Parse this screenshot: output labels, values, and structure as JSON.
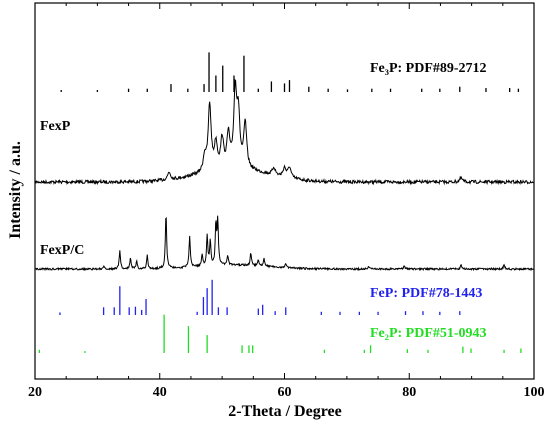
{
  "chart_data": {
    "type": "line",
    "xlabel": "2-Theta / Degree",
    "ylabel": "Intensity / a.u.",
    "xlim": [
      20,
      100
    ],
    "x_ticks": [
      "20",
      "40",
      "60",
      "80",
      "100"
    ],
    "grid": false,
    "series": [
      {
        "name": "FexP",
        "peaks": [
          [
            41.5,
            0.1
          ],
          [
            47.2,
            0.2
          ],
          [
            48.0,
            0.85
          ],
          [
            49.0,
            0.33
          ],
          [
            50.0,
            0.38
          ],
          [
            51.0,
            0.42
          ],
          [
            52.1,
            0.95
          ],
          [
            52.6,
            0.65
          ],
          [
            53.7,
            0.58
          ],
          [
            58.3,
            0.1
          ],
          [
            60.0,
            0.12
          ],
          [
            60.8,
            0.14
          ],
          [
            88.3,
            0.05
          ]
        ]
      },
      {
        "name": "FexP/C",
        "peaks": [
          [
            31.0,
            0.04
          ],
          [
            33.6,
            0.3
          ],
          [
            35.3,
            0.18
          ],
          [
            36.3,
            0.12
          ],
          [
            38.0,
            0.22
          ],
          [
            41.0,
            0.9
          ],
          [
            44.8,
            0.5
          ],
          [
            46.8,
            0.18
          ],
          [
            47.6,
            0.5
          ],
          [
            48.1,
            0.4
          ],
          [
            49.0,
            0.65
          ],
          [
            49.3,
            0.7
          ],
          [
            50.9,
            0.15
          ],
          [
            54.6,
            0.2
          ],
          [
            55.8,
            0.1
          ],
          [
            56.7,
            0.12
          ],
          [
            60.2,
            0.06
          ],
          [
            73.5,
            0.04
          ],
          [
            79.2,
            0.06
          ],
          [
            88.3,
            0.06
          ],
          [
            95.2,
            0.08
          ]
        ]
      }
    ],
    "references": [
      {
        "label": "Fe₃P: PDF#89-2712",
        "color": "#000000",
        "sticks": [
          [
            41.8,
            0.12
          ],
          [
            47.1,
            0.12
          ],
          [
            47.9,
            0.6
          ],
          [
            49.0,
            0.25
          ],
          [
            50.1,
            0.4
          ],
          [
            51.9,
            0.25
          ],
          [
            53.5,
            0.55
          ],
          [
            57.9,
            0.16
          ],
          [
            60.0,
            0.13
          ],
          [
            60.8,
            0.18
          ],
          [
            63.9,
            0.08
          ],
          [
            24.2,
            0.03
          ],
          [
            30.0,
            0.03
          ],
          [
            35.0,
            0.05
          ],
          [
            38.0,
            0.05
          ],
          [
            44.5,
            0.05
          ],
          [
            55.8,
            0.05
          ],
          [
            67.0,
            0.05
          ],
          [
            70.1,
            0.04
          ],
          [
            74.0,
            0.05
          ],
          [
            77.0,
            0.05
          ],
          [
            82.0,
            0.05
          ],
          [
            84.9,
            0.05
          ],
          [
            88.1,
            0.08
          ],
          [
            92.3,
            0.06
          ],
          [
            96.1,
            0.06
          ],
          [
            97.5,
            0.05
          ]
        ]
      },
      {
        "label": "FeP: PDF#78-1443",
        "color": "#2222ee",
        "sticks": [
          [
            31.0,
            0.12
          ],
          [
            32.7,
            0.12
          ],
          [
            33.6,
            0.45
          ],
          [
            35.1,
            0.12
          ],
          [
            36.1,
            0.13
          ],
          [
            37.1,
            0.08
          ],
          [
            37.8,
            0.25
          ],
          [
            46.0,
            0.05
          ],
          [
            47.0,
            0.28
          ],
          [
            47.6,
            0.42
          ],
          [
            48.4,
            0.55
          ],
          [
            49.4,
            0.12
          ],
          [
            50.8,
            0.12
          ],
          [
            55.8,
            0.1
          ],
          [
            56.5,
            0.16
          ],
          [
            58.5,
            0.06
          ],
          [
            60.2,
            0.12
          ],
          [
            65.9,
            0.05
          ],
          [
            68.9,
            0.05
          ],
          [
            72.0,
            0.05
          ],
          [
            75.0,
            0.05
          ],
          [
            79.4,
            0.06
          ],
          [
            82.2,
            0.06
          ],
          [
            84.9,
            0.05
          ],
          [
            88.1,
            0.06
          ],
          [
            24.0,
            0.04
          ]
        ]
      },
      {
        "label": "Fe₂P: PDF#51-0943",
        "color": "#22dd22",
        "sticks": [
          [
            40.7,
            0.6
          ],
          [
            44.6,
            0.42
          ],
          [
            47.6,
            0.28
          ],
          [
            53.2,
            0.12
          ],
          [
            54.3,
            0.12
          ],
          [
            54.9,
            0.12
          ],
          [
            66.4,
            0.05
          ],
          [
            72.8,
            0.05
          ],
          [
            73.8,
            0.12
          ],
          [
            79.7,
            0.06
          ],
          [
            83.0,
            0.05
          ],
          [
            88.6,
            0.1
          ],
          [
            89.9,
            0.07
          ],
          [
            95.2,
            0.05
          ],
          [
            97.9,
            0.07
          ],
          [
            20.7,
            0.05
          ],
          [
            28.0,
            0.03
          ]
        ]
      }
    ],
    "legend_placement": "labels inline beside patterns"
  }
}
